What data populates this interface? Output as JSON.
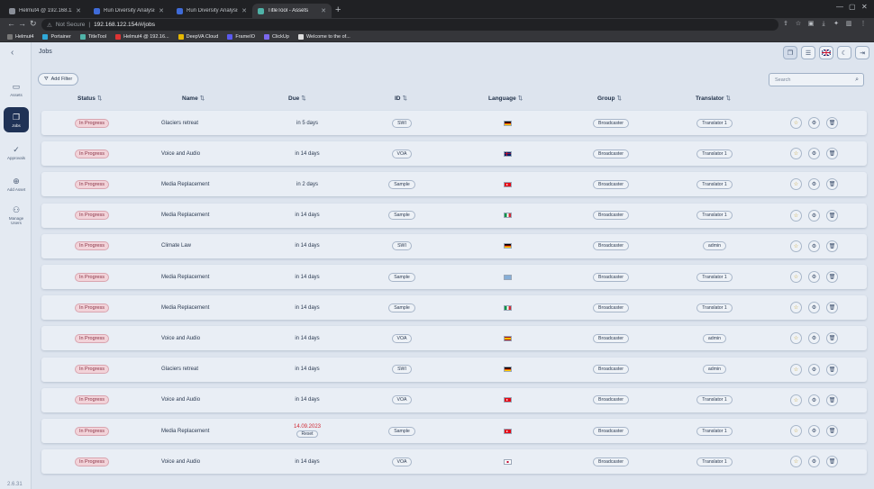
{
  "browser": {
    "tabs": [
      {
        "label": "Helmut4 @ 192.168.122.155",
        "active": false,
        "color": "#8a8f98"
      },
      {
        "label": "Run Diversity Analysis (EXPOR",
        "active": false,
        "color": "#3f6bd8"
      },
      {
        "label": "Run Diversity Analysis (EXPOR",
        "active": false,
        "color": "#3f6bd8"
      },
      {
        "label": "TitleTool - Assets",
        "active": true,
        "color": "#4fb3a8"
      }
    ],
    "security_label": "Not Secure",
    "url": "192.168.122.154/#/jobs",
    "bookmarks": [
      {
        "label": "Helmut4",
        "color": "#777"
      },
      {
        "label": "Portainer",
        "color": "#2fa8d8"
      },
      {
        "label": "TitleTool",
        "color": "#4fb3a8"
      },
      {
        "label": "Helmut4 @ 192.16...",
        "color": "#d33"
      },
      {
        "label": "DeepVA Cloud",
        "color": "#e6b800"
      },
      {
        "label": "FrameIO",
        "color": "#5a5af0"
      },
      {
        "label": "ClickUp",
        "color": "#7b68ee"
      },
      {
        "label": "Welcome to the of...",
        "color": "#ddd"
      }
    ]
  },
  "sidebar": {
    "items": [
      {
        "label": "Assets",
        "icon": "video-icon",
        "active": false
      },
      {
        "label": "Jobs",
        "icon": "copy-icon",
        "active": true
      },
      {
        "label": "Approvals",
        "icon": "check-circle-icon",
        "active": false
      },
      {
        "label": "Add Asset",
        "icon": "plus-circle-icon",
        "active": false
      },
      {
        "label": "Manage Users",
        "icon": "users-icon",
        "active": false
      }
    ],
    "version": "2.6.31"
  },
  "page": {
    "title": "Jobs",
    "add_filter_label": "Add Filter",
    "search_placeholder": "Search"
  },
  "table": {
    "columns": [
      {
        "key": "status",
        "label": "Status"
      },
      {
        "key": "name",
        "label": "Name"
      },
      {
        "key": "due",
        "label": "Due"
      },
      {
        "key": "id",
        "label": "ID"
      },
      {
        "key": "language",
        "label": "Language"
      },
      {
        "key": "group",
        "label": "Group"
      },
      {
        "key": "translator",
        "label": "Translator"
      }
    ],
    "rows": [
      {
        "status": "In Progress",
        "name": "Glaciers retreat",
        "due": "in 5 days",
        "id": "SWI",
        "flag": "de",
        "group": "Broadcaster",
        "translator": "Translator 1"
      },
      {
        "status": "In Progress",
        "name": "Voice and Audio",
        "due": "in 14 days",
        "id": "VOA",
        "flag": "gb",
        "group": "Broadcaster",
        "translator": "Translator 1"
      },
      {
        "status": "In Progress",
        "name": "Media Replacement",
        "due": "in 2 days",
        "id": "Sample",
        "flag": "tr",
        "group": "Broadcaster",
        "translator": "Translator 1"
      },
      {
        "status": "In Progress",
        "name": "Media Replacement",
        "due": "in 14 days",
        "id": "Sample",
        "flag": "it",
        "group": "Broadcaster",
        "translator": "Translator 1"
      },
      {
        "status": "In Progress",
        "name": "Climate Law",
        "due": "in 14 days",
        "id": "SWI",
        "flag": "de",
        "group": "Broadcaster",
        "translator": "admin"
      },
      {
        "status": "In Progress",
        "name": "Media Replacement",
        "due": "in 14 days",
        "id": "Sample",
        "flag": "gr",
        "group": "Broadcaster",
        "translator": "Translator 1"
      },
      {
        "status": "In Progress",
        "name": "Media Replacement",
        "due": "in 14 days",
        "id": "Sample",
        "flag": "it",
        "group": "Broadcaster",
        "translator": "Translator 1"
      },
      {
        "status": "In Progress",
        "name": "Voice and Audio",
        "due": "in 14 days",
        "id": "VOA",
        "flag": "es",
        "group": "Broadcaster",
        "translator": "admin"
      },
      {
        "status": "In Progress",
        "name": "Glaciers retreat",
        "due": "in 14 days",
        "id": "SWI",
        "flag": "de",
        "group": "Broadcaster",
        "translator": "admin"
      },
      {
        "status": "In Progress",
        "name": "Voice and Audio",
        "due": "in 14 days",
        "id": "VOA",
        "flag": "tr",
        "group": "Broadcaster",
        "translator": "Translator 1"
      },
      {
        "status": "In Progress",
        "name": "Media Replacement",
        "due": "14.09.2023",
        "due_reset": "Reset",
        "overdue": true,
        "id": "Sample",
        "flag": "tr",
        "group": "Broadcaster",
        "translator": "Translator 1"
      },
      {
        "status": "In Progress",
        "name": "Voice and Audio",
        "due": "in 14 days",
        "id": "VOA",
        "flag": "jp",
        "group": "Broadcaster",
        "translator": "Translator 1"
      }
    ]
  }
}
